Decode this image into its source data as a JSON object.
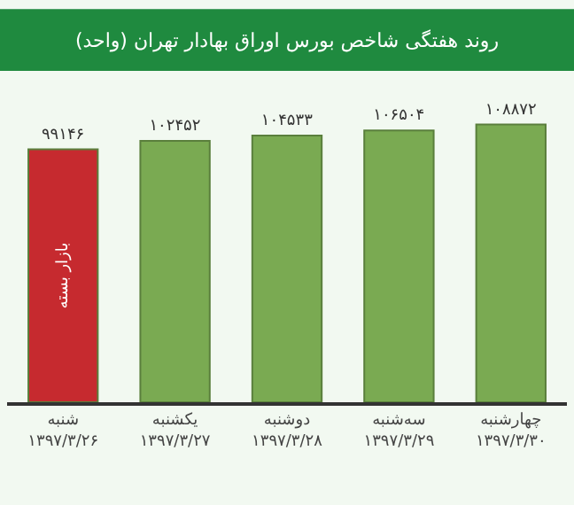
{
  "chart_data": {
    "type": "bar",
    "title": "روند هفتگی شاخص بورس اوراق بهادار تهران (واحد)",
    "categories": [
      "شنبه\n۱۳۹۷/۳/۲۶",
      "یکشنبه\n۱۳۹۷/۳/۲۷",
      "دوشنبه\n۱۳۹۷/۳/۲۸",
      "سه‌شنبه\n۱۳۹۷/۳/۲۹",
      "چهارشنبه\n۱۳۹۷/۳/۳۰"
    ],
    "values": [
      99146,
      102452,
      104533,
      106504,
      108872
    ],
    "value_labels": [
      "۹۹۱۴۶",
      "۱۰۲۴۵۲",
      "۱۰۴۵۳۳",
      "۱۰۶۵۰۴",
      "۱۰۸۸۷۲"
    ],
    "colors": [
      "#c62a2f",
      "#7aaa52",
      "#7aaa52",
      "#7aaa52",
      "#7aaa52"
    ],
    "tick_labels": "x",
    "annotations": [
      "بازار بسته"
    ]
  }
}
